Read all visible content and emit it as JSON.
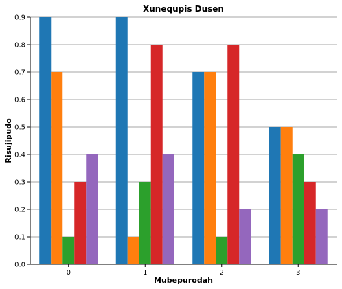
{
  "chart_data": {
    "type": "bar",
    "title": "Xunequpis Dusen",
    "xlabel": "Mubepurodah",
    "ylabel": "Risujipudo",
    "categories": [
      "0",
      "1",
      "2",
      "3"
    ],
    "ylim": [
      0,
      0.9
    ],
    "yticks": [
      "0.0",
      "0.1",
      "0.2",
      "0.3",
      "0.4",
      "0.5",
      "0.6",
      "0.7",
      "0.8",
      "0.9"
    ],
    "grid": true,
    "series": [
      {
        "color": "#1f77b4",
        "values": [
          0.9,
          0.9,
          0.7,
          0.5
        ]
      },
      {
        "color": "#ff7f0e",
        "values": [
          0.7,
          0.1,
          0.7,
          0.5
        ]
      },
      {
        "color": "#2ca02c",
        "values": [
          0.1,
          0.3,
          0.1,
          0.4
        ]
      },
      {
        "color": "#d62728",
        "values": [
          0.3,
          0.8,
          0.8,
          0.3
        ]
      },
      {
        "color": "#9467bd",
        "values": [
          0.4,
          0.4,
          0.2,
          0.2
        ]
      }
    ]
  }
}
